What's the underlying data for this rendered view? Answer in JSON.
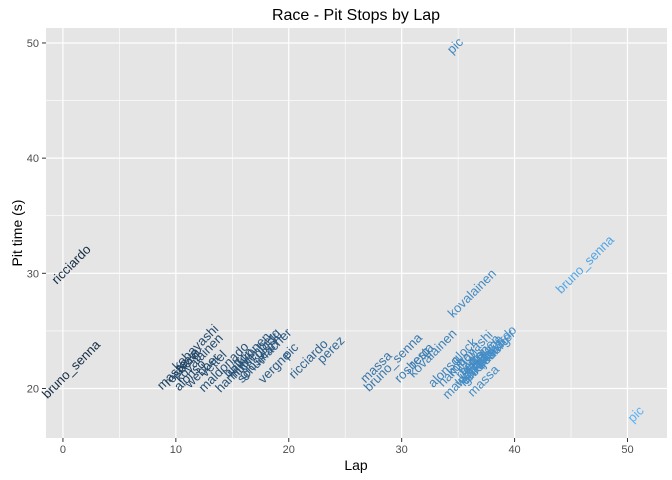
{
  "chart_data": {
    "type": "scatter",
    "title": "Race - Pit Stops by Lap",
    "xlabel": "Lap",
    "ylabel": "Pit time (s)",
    "xlim": [
      -1.5,
      53.5
    ],
    "ylim": [
      15.7,
      51.3
    ],
    "x_ticks": [
      0,
      10,
      20,
      30,
      40,
      50
    ],
    "y_ticks": [
      20,
      30,
      40,
      50
    ],
    "grid": true,
    "legend": "none",
    "colors": {
      "low": "#132B43",
      "high": "#56B1F7",
      "panel": "#E5E5E5",
      "grid": "#FFFFFF"
    },
    "points": [
      {
        "label": "ricciardo",
        "x": 1,
        "y": 30.5
      },
      {
        "label": "bruno_senna",
        "x": 1,
        "y": 21.4
      },
      {
        "label": "kobayashi",
        "x": 12,
        "y": 23.3
      },
      {
        "label": "massa",
        "x": 10,
        "y": 21.0
      },
      {
        "label": "rosberg",
        "x": 10.8,
        "y": 21.5
      },
      {
        "label": "resta",
        "x": 11.3,
        "y": 22.2
      },
      {
        "label": "kovalainen",
        "x": 12.3,
        "y": 22.4
      },
      {
        "label": "alonso",
        "x": 11.5,
        "y": 20.9
      },
      {
        "label": "webber",
        "x": 12.6,
        "y": 21.3
      },
      {
        "label": "vettel",
        "x": 13.6,
        "y": 21.9
      },
      {
        "label": "maldonado",
        "x": 14.5,
        "y": 21.6
      },
      {
        "label": "button",
        "x": 15.8,
        "y": 22.0
      },
      {
        "label": "raikkonen",
        "x": 16.7,
        "y": 22.7
      },
      {
        "label": "glock",
        "x": 18.3,
        "y": 23.5
      },
      {
        "label": "grosjean",
        "x": 17.6,
        "y": 22.3
      },
      {
        "label": "hulkenberg",
        "x": 17.3,
        "y": 22.8
      },
      {
        "label": "hamilton",
        "x": 15.5,
        "y": 21.1
      },
      {
        "label": "schumacher",
        "x": 18.1,
        "y": 22.6
      },
      {
        "label": "vergne",
        "x": 19.0,
        "y": 21.6
      },
      {
        "label": "pic",
        "x": 20.4,
        "y": 23.0
      },
      {
        "label": "ricciardo",
        "x": 22.0,
        "y": 22.3
      },
      {
        "label": "perez",
        "x": 24.0,
        "y": 23.1
      },
      {
        "label": "massa",
        "x": 28.0,
        "y": 21.6
      },
      {
        "label": "bruno_senna",
        "x": 29.5,
        "y": 22.0
      },
      {
        "label": "rosberg",
        "x": 31.2,
        "y": 21.8
      },
      {
        "label": "resta",
        "x": 32.0,
        "y": 22.6
      },
      {
        "label": "kovalainen",
        "x": 33.0,
        "y": 22.8
      },
      {
        "label": "pic",
        "x": 35.0,
        "y": 49.5
      },
      {
        "label": "kovalainen",
        "x": 36.5,
        "y": 28.0
      },
      {
        "label": "alonso",
        "x": 34.0,
        "y": 21.2
      },
      {
        "label": "glock",
        "x": 35.8,
        "y": 23.0
      },
      {
        "label": "kobayashi",
        "x": 36.3,
        "y": 22.8
      },
      {
        "label": "hamilton",
        "x": 35.2,
        "y": 21.6
      },
      {
        "label": "vettel",
        "x": 36.5,
        "y": 22.0
      },
      {
        "label": "button",
        "x": 36.7,
        "y": 22.2
      },
      {
        "label": "raikkonen",
        "x": 37.0,
        "y": 22.5
      },
      {
        "label": "webber",
        "x": 36.5,
        "y": 21.4
      },
      {
        "label": "maldonado",
        "x": 36.1,
        "y": 21.0
      },
      {
        "label": "grosjean",
        "x": 37.3,
        "y": 21.8
      },
      {
        "label": "hulkenberg",
        "x": 37.6,
        "y": 22.1
      },
      {
        "label": "schumacher",
        "x": 37.9,
        "y": 22.5
      },
      {
        "label": "perez",
        "x": 38.1,
        "y": 22.8
      },
      {
        "label": "vergne",
        "x": 37.8,
        "y": 23.0
      },
      {
        "label": "ricciardo",
        "x": 38.7,
        "y": 23.5
      },
      {
        "label": "massa",
        "x": 37.5,
        "y": 20.4
      },
      {
        "label": "bruno_senna",
        "x": 46.5,
        "y": 30.5
      },
      {
        "label": "pic",
        "x": 51.0,
        "y": 17.5
      }
    ]
  }
}
